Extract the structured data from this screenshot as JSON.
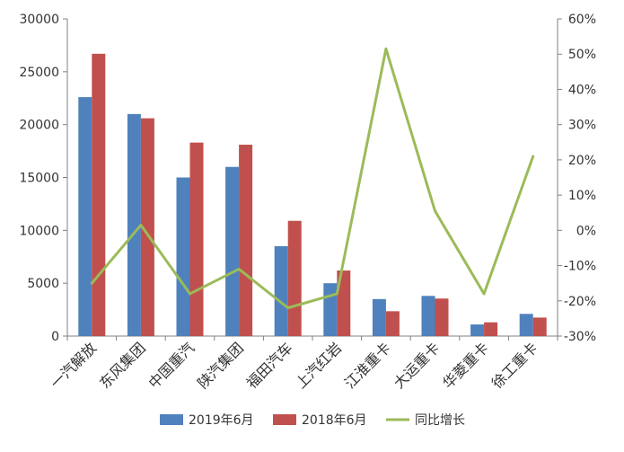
{
  "chart_data": {
    "type": "bar",
    "categories": [
      "一汽解放",
      "东风集团",
      "中国重汽",
      "陕汽集团",
      "福田汽车",
      "上汽红岩",
      "江淮重卡",
      "大运重卡",
      "华菱重卡",
      "徐工重卡"
    ],
    "series": [
      {
        "name": "2019年6月",
        "type": "bar",
        "axis": "left",
        "color": "#4F81BD",
        "values": [
          22600,
          21000,
          15000,
          16000,
          8500,
          5000,
          3500,
          3800,
          1100,
          2100
        ]
      },
      {
        "name": "2018年6月",
        "type": "bar",
        "axis": "left",
        "color": "#C0504D",
        "values": [
          26700,
          20600,
          18300,
          18100,
          10900,
          6200,
          2350,
          3550,
          1300,
          1750
        ]
      },
      {
        "name": "同比增长",
        "type": "line",
        "axis": "right",
        "color": "#9BBB59",
        "values": [
          -15,
          1.5,
          -18,
          -11,
          -22,
          -18,
          51.5,
          5.5,
          -18,
          21
        ]
      }
    ],
    "y_left": {
      "min": 0,
      "max": 30000,
      "ticks": [
        "0",
        "5000",
        "10000",
        "15000",
        "20000",
        "25000",
        "30000"
      ]
    },
    "y_right": {
      "min": -30,
      "max": 60,
      "ticks": [
        "-30%",
        "-20%",
        "-10%",
        "0%",
        "10%",
        "20%",
        "30%",
        "40%",
        "50%",
        "60%"
      ]
    },
    "grid": false,
    "legend_position": "bottom"
  }
}
